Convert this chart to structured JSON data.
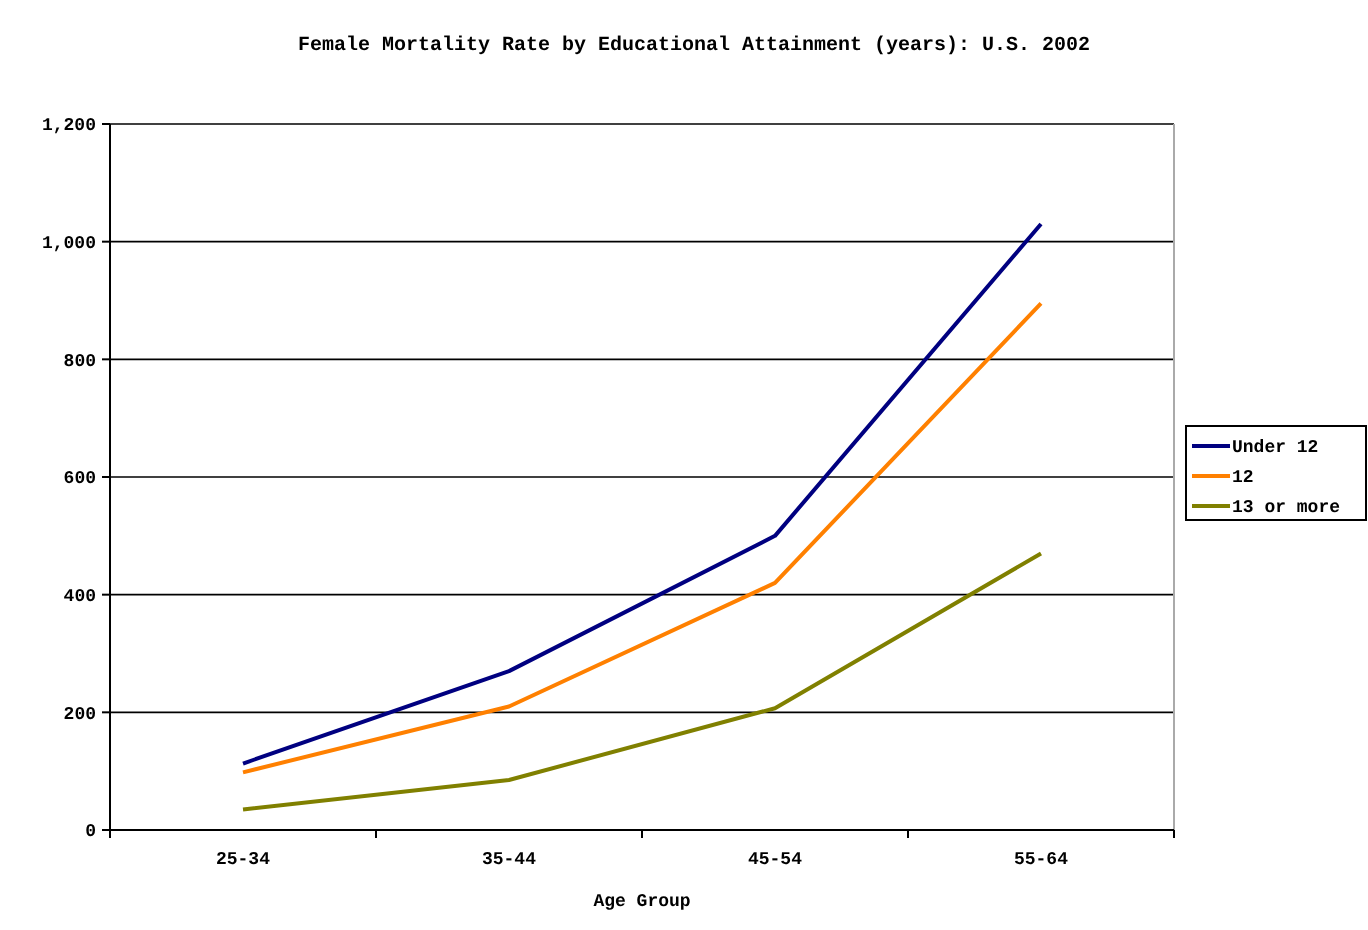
{
  "chart_data": {
    "type": "line",
    "title": "Female Mortality Rate by Educational Attainment (years): U.S. 2002",
    "xlabel": "Age Group",
    "categories": [
      "25-34",
      "35-44",
      "45-54",
      "55-64"
    ],
    "series": [
      {
        "name": "Under 12",
        "color": "#000080",
        "values": [
          113,
          270,
          500,
          1030
        ]
      },
      {
        "name": "12",
        "color": "#ff8000",
        "values": [
          98,
          210,
          420,
          895
        ]
      },
      {
        "name": "13 or more",
        "color": "#808000",
        "values": [
          35,
          85,
          207,
          470
        ]
      }
    ],
    "ylim": [
      0,
      1200
    ],
    "yticks": [
      0,
      {
        "value": 200,
        "label": "200"
      },
      {
        "value": 400,
        "label": "400"
      },
      {
        "value": 600,
        "label": "600"
      },
      {
        "value": 800,
        "label": "800"
      },
      {
        "value": 1000,
        "label": "1,000"
      },
      {
        "value": 1200,
        "label": "1,200"
      }
    ],
    "grid": "y",
    "legend": "right",
    "marker": "none",
    "line_style": "solid"
  }
}
